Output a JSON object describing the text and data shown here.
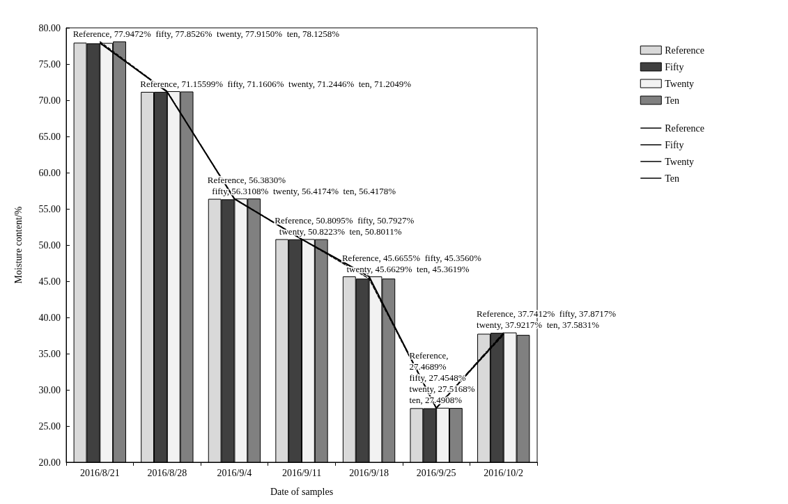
{
  "chart_data": {
    "type": "bar",
    "xlabel": "Date of samples",
    "ylabel": "Moisture content/%",
    "categories": [
      "2016/8/21",
      "2016/8/28",
      "2016/9/4",
      "2016/9/11",
      "2016/9/18",
      "2016/9/25",
      "2016/10/2"
    ],
    "series": [
      {
        "name": "Reference",
        "color": "#d9d9d9",
        "values": [
          77.9472,
          71.15599,
          56.383,
          50.8095,
          45.6655,
          27.4689,
          37.7412
        ]
      },
      {
        "name": "Fifty",
        "color": "#404040",
        "values": [
          77.8526,
          71.1606,
          56.3108,
          50.7927,
          45.356,
          27.4548,
          37.8717
        ]
      },
      {
        "name": "Twenty",
        "color": "#f2f2f2",
        "values": [
          77.915,
          71.2446,
          56.4174,
          50.8223,
          45.6629,
          27.5168,
          37.9217
        ]
      },
      {
        "name": "Ten",
        "color": "#808080",
        "values": [
          78.1258,
          71.2049,
          56.4178,
          50.8011,
          45.3619,
          27.4908,
          37.5831
        ]
      },
      {
        "name": "Reference",
        "type": "line",
        "line_style": "solid",
        "color": "#000000",
        "values": [
          77.9472,
          71.15599,
          56.383,
          50.8095,
          45.6655,
          27.4689,
          37.7412
        ]
      },
      {
        "name": "Fifty",
        "type": "line",
        "line_style": "dotted",
        "color": "#000000",
        "values": [
          77.8526,
          71.1606,
          56.3108,
          50.7927,
          45.356,
          27.4548,
          37.8717
        ]
      },
      {
        "name": "Twenty",
        "type": "line",
        "line_style": "dashdot",
        "color": "#000000",
        "values": [
          77.915,
          71.2446,
          56.4174,
          50.8223,
          45.6629,
          27.5168,
          37.9217
        ]
      },
      {
        "name": "Ten",
        "type": "line",
        "line_style": "dashed",
        "color": "#000000",
        "values": [
          78.1258,
          71.2049,
          56.4178,
          50.8011,
          45.3619,
          27.4908,
          37.5831
        ]
      }
    ],
    "ylim": [
      20,
      80
    ],
    "yticks": [
      {
        "value": 20,
        "label": "20.00"
      },
      {
        "value": 25,
        "label": "25.00"
      },
      {
        "value": 30,
        "label": "30.00"
      },
      {
        "value": 35,
        "label": "35.00"
      },
      {
        "value": 40,
        "label": "40.00"
      },
      {
        "value": 45,
        "label": "45.00"
      },
      {
        "value": 50,
        "label": "50.00"
      },
      {
        "value": 55,
        "label": "55.00"
      },
      {
        "value": 60,
        "label": "60.00"
      },
      {
        "value": 65,
        "label": "65.00"
      },
      {
        "value": 70,
        "label": "70.00"
      },
      {
        "value": 75,
        "label": "75.00"
      },
      {
        "value": 80,
        "label": "80.00"
      }
    ],
    "grid": false,
    "legend": "right",
    "marker": "none",
    "annotations": [
      {
        "text": "Reference, 77.9472%  fifty, 77.8526%  twenty, 77.9150%  ten, 78.1258%",
        "x": "2016/8/21",
        "y": 78.1258
      },
      {
        "text": "Reference, 71.15599%  fifty, 71.1606%  twenty, 71.2446%  ten, 71.2049%",
        "x": "2016/8/28",
        "y": 71.2446
      },
      {
        "text": "Reference, 56.3830%\n  fifty, 56.3108%  twenty, 56.4174%  ten, 56.4178%",
        "x": "2016/9/4",
        "y": 56.4178
      },
      {
        "text": "Reference, 50.8095%  fifty, 50.7927%\n  twenty, 50.8223%  ten, 50.8011%",
        "x": "2016/9/11",
        "y": 50.8223
      },
      {
        "text": "Reference, 45.6655%  fifty, 45.3560%\n  twenty, 45.6629%  ten, 45.3619%",
        "x": "2016/9/18",
        "y": 45.6655
      },
      {
        "text": "Reference,\n27.4689%\nfifty, 27.4548%\ntwenty, 27.5168%\nten, 27.4908%",
        "x": "2016/9/25",
        "y": 27.5168
      },
      {
        "text": "Reference, 37.7412%  fifty, 37.8717%\ntwenty, 37.9217%  ten, 37.5831%",
        "x": "2016/10/2",
        "y": 37.9217
      }
    ]
  }
}
